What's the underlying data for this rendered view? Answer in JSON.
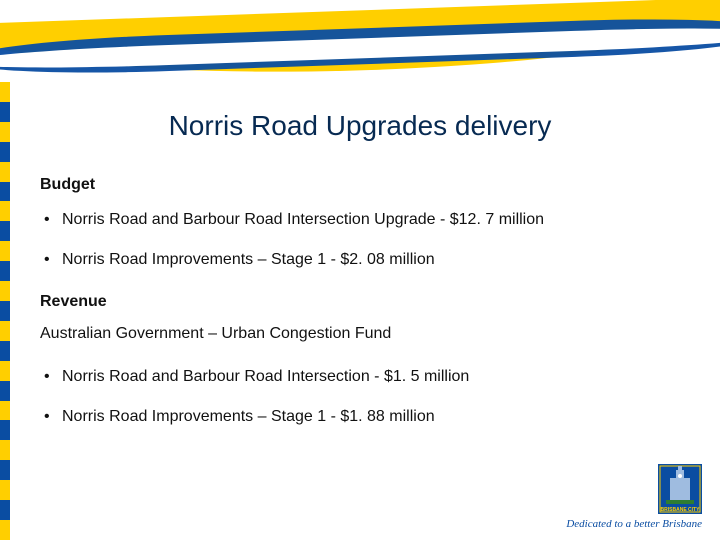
{
  "title": "Norris Road Upgrades delivery",
  "sections": {
    "budget_heading": "Budget",
    "budget_items": [
      "Norris Road and Barbour Road Intersection Upgrade - $12. 7 million",
      "Norris Road Improvements – Stage 1 - $2. 08 million"
    ],
    "revenue_heading": "Revenue",
    "revenue_source": "Australian Government – Urban Congestion Fund",
    "revenue_items": [
      "Norris Road and Barbour Road Intersection - $1. 5 million",
      "Norris Road Improvements – Stage 1 - $1. 88 million"
    ]
  },
  "footer": {
    "tagline": "Dedicated to a better Brisbane",
    "logo_label": "Brisbane City"
  },
  "style": {
    "title_color": "#072a52",
    "title_fontsize": 28,
    "body_fontsize": 16,
    "brand_yellow": "#ffcf00",
    "brand_blue": "#0a4da2",
    "leftbar_colors": [
      "#ffcf00",
      "#0a4da2",
      "#ffcf00",
      "#0a4da2",
      "#ffcf00",
      "#0a4da2",
      "#ffcf00",
      "#0a4da2",
      "#ffcf00",
      "#0a4da2",
      "#ffcf00",
      "#0a4da2",
      "#ffcf00",
      "#0a4da2",
      "#ffcf00",
      "#0a4da2",
      "#ffcf00",
      "#0a4da2",
      "#ffcf00",
      "#0a4da2",
      "#ffcf00",
      "#0a4da2",
      "#ffcf00"
    ],
    "background": "#ffffff",
    "slide_w": 720,
    "slide_h": 540
  }
}
